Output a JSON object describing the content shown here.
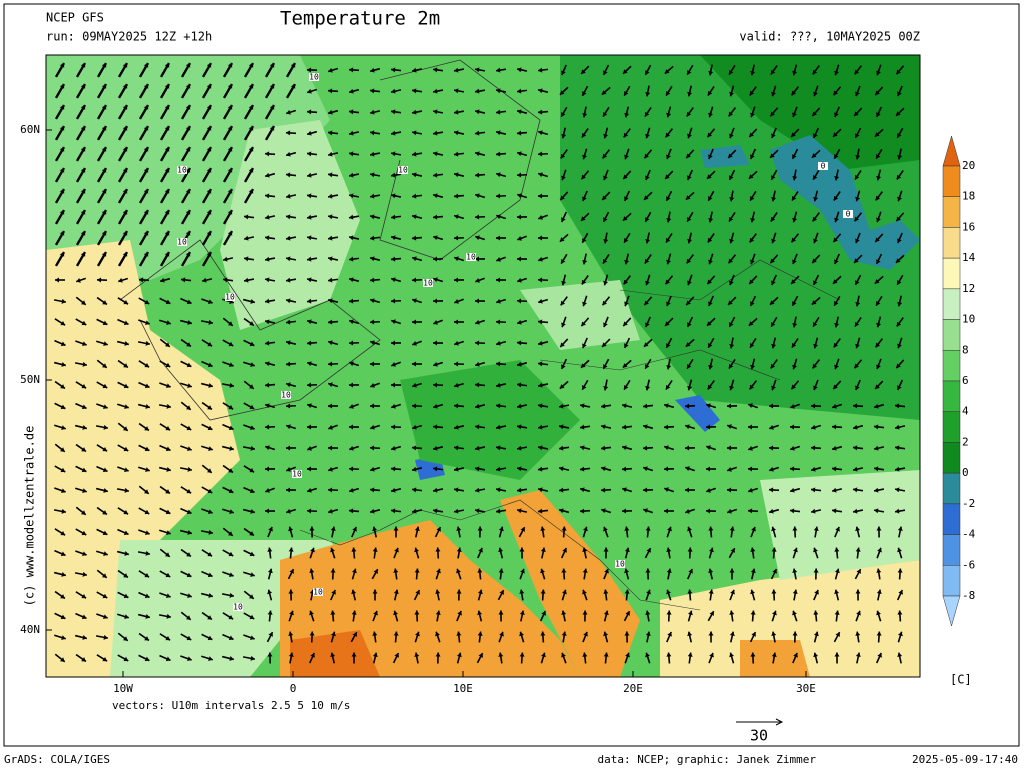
{
  "header": {
    "model": "NCEP GFS",
    "title": "Temperature 2m",
    "run": "run: 09MAY2025 12Z +12h",
    "valid": "valid: ???, 10MAY2025 00Z"
  },
  "map": {
    "lat_labels": [
      "60N",
      "50N",
      "40N"
    ],
    "lon_labels": [
      "10W",
      "0",
      "10E",
      "20E",
      "30E"
    ],
    "contour_labels": [
      "10",
      "10",
      "10",
      "10",
      "10",
      "10",
      "10",
      "10",
      "10",
      "0",
      "0",
      "10",
      "10",
      "10"
    ],
    "watermark": "(c) www.modellzentrale.de"
  },
  "colorbar": {
    "labels": [
      20,
      18,
      16,
      14,
      12,
      10,
      8,
      6,
      4,
      2,
      0,
      -2,
      -4,
      -6,
      -8
    ],
    "unit": "[C]",
    "colors": [
      "#e0640f",
      "#f08c1e",
      "#f4b446",
      "#f8dc8c",
      "#fdf8b8",
      "#c8f0c0",
      "#98e090",
      "#64d064",
      "#36b840",
      "#1ea02a",
      "#0e8a1e",
      "#2a8c9a",
      "#2e6ed4",
      "#4e92e4",
      "#80baf2",
      "#a8d4ff"
    ]
  },
  "footer": {
    "vectors": "vectors: U10m intervals 2.5 5 10 m/s",
    "scale": "30",
    "software": "GrADS: COLA/IGES",
    "credit": "data: NCEP; graphic: Janek Zimmer",
    "timestamp": "2025-05-09-17:40"
  }
}
